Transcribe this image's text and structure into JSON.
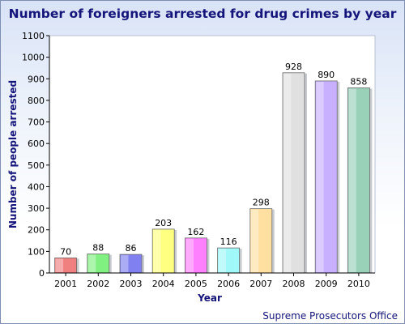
{
  "chart_data": {
    "type": "bar",
    "title": "Number of foreigners arrested for drug crimes by year",
    "xlabel": "Year",
    "ylabel": "Number of people arrested",
    "categories": [
      "2001",
      "2002",
      "2003",
      "2004",
      "2005",
      "2006",
      "2007",
      "2008",
      "2009",
      "2010"
    ],
    "values": [
      70,
      88,
      86,
      203,
      162,
      116,
      298,
      928,
      890,
      858
    ],
    "data_labels": [
      "70",
      "88",
      "86",
      "203",
      "162",
      "116",
      "298",
      "928",
      "890",
      "858"
    ],
    "colors": [
      "#f08080",
      "#80f080",
      "#8080f0",
      "#ffff80",
      "#ff80ff",
      "#a0f8f8",
      "#ffe0a0",
      "#e0e0e0",
      "#c8b0ff",
      "#98d0b8"
    ],
    "ylim": [
      0,
      1100
    ],
    "yticks": [
      0,
      100,
      200,
      300,
      400,
      500,
      600,
      700,
      800,
      900,
      1000,
      1100
    ],
    "ytick_labels": [
      "0",
      "100",
      "200",
      "300",
      "400",
      "500",
      "600",
      "700",
      "800",
      "900",
      "1000",
      "1100"
    ],
    "grid": false,
    "source": "Supreme Prosecutors Office"
  }
}
